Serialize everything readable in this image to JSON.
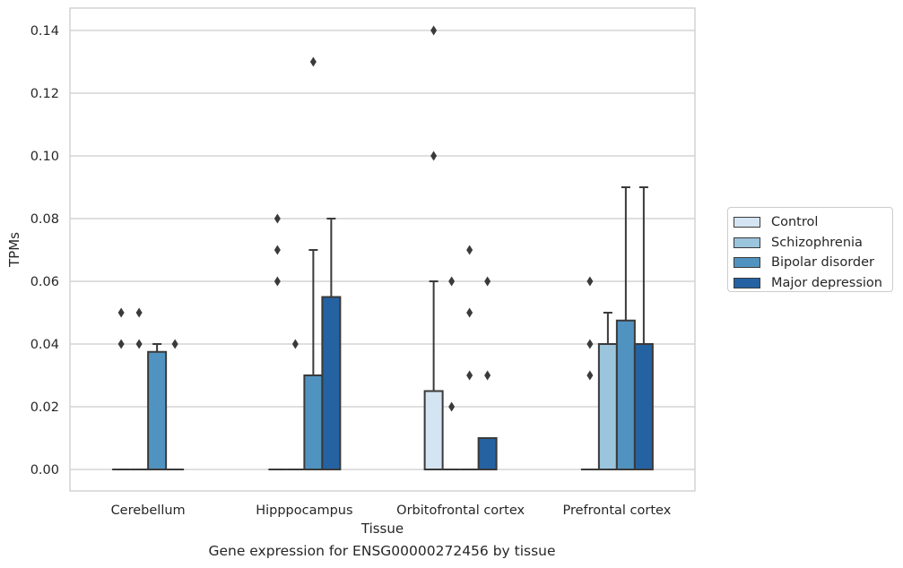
{
  "caption": "Gene expression for ENSG00000272456 by tissue",
  "colors": {
    "Control": "#d4e4f2",
    "Schizophrenia": "#9bc4dd",
    "Bipolar disorder": "#5193c0",
    "Major depression": "#2462a2",
    "edge": "#3a3a3a",
    "grid": "#cccccc"
  },
  "chart_data": {
    "type": "box",
    "title": "",
    "xlabel": "Tissue",
    "ylabel": "TPMs",
    "ylim": [
      -0.007,
      0.147
    ],
    "yticks": [
      "0.00",
      "0.02",
      "0.04",
      "0.06",
      "0.08",
      "0.10",
      "0.12",
      "0.14"
    ],
    "categories": [
      "Cerebellum",
      "Hipppocampus",
      "Orbitofrontal cortex",
      "Prefrontal cortex"
    ],
    "grid": true,
    "legend_position": "right",
    "series": [
      {
        "name": "Control",
        "boxes": [
          {
            "q1": 0,
            "median": 0,
            "q3": 0,
            "whisker_low": 0,
            "whisker_high": 0,
            "outliers": [
              0.04,
              0.05
            ]
          },
          {
            "q1": 0,
            "median": 0,
            "q3": 0,
            "whisker_low": 0,
            "whisker_high": 0,
            "outliers": [
              0.06,
              0.07,
              0.08
            ]
          },
          {
            "q1": 0,
            "median": 0,
            "q3": 0.025,
            "whisker_low": 0,
            "whisker_high": 0.06,
            "outliers": [
              0.1,
              0.14
            ]
          },
          {
            "q1": 0,
            "median": 0,
            "q3": 0,
            "whisker_low": 0,
            "whisker_high": 0,
            "outliers": [
              0.03,
              0.04,
              0.06
            ]
          }
        ]
      },
      {
        "name": "Schizophrenia",
        "boxes": [
          {
            "q1": 0,
            "median": 0,
            "q3": 0,
            "whisker_low": 0,
            "whisker_high": 0,
            "outliers": [
              0.04,
              0.05
            ]
          },
          {
            "q1": 0,
            "median": 0,
            "q3": 0,
            "whisker_low": 0,
            "whisker_high": 0,
            "outliers": [
              0.04
            ]
          },
          {
            "q1": 0,
            "median": 0,
            "q3": 0,
            "whisker_low": 0,
            "whisker_high": 0,
            "outliers": [
              0.02,
              0.06
            ]
          },
          {
            "q1": 0,
            "median": 0,
            "q3": 0.04,
            "whisker_low": 0,
            "whisker_high": 0.05,
            "outliers": []
          }
        ]
      },
      {
        "name": "Bipolar disorder",
        "boxes": [
          {
            "q1": 0,
            "median": 0,
            "q3": 0.0375,
            "whisker_low": 0,
            "whisker_high": 0.04,
            "outliers": []
          },
          {
            "q1": 0,
            "median": 0,
            "q3": 0.03,
            "whisker_low": 0,
            "whisker_high": 0.07,
            "outliers": [
              0.13
            ]
          },
          {
            "q1": 0,
            "median": 0,
            "q3": 0,
            "whisker_low": 0,
            "whisker_high": 0,
            "outliers": [
              0.03,
              0.05,
              0.07
            ]
          },
          {
            "q1": 0,
            "median": 0,
            "q3": 0.0475,
            "whisker_low": 0,
            "whisker_high": 0.09,
            "outliers": []
          }
        ]
      },
      {
        "name": "Major depression",
        "boxes": [
          {
            "q1": 0,
            "median": 0,
            "q3": 0,
            "whisker_low": 0,
            "whisker_high": 0,
            "outliers": [
              0.04
            ]
          },
          {
            "q1": 0,
            "median": 0,
            "q3": 0.055,
            "whisker_low": 0,
            "whisker_high": 0.08,
            "outliers": []
          },
          {
            "q1": 0,
            "median": 0,
            "q3": 0.01,
            "whisker_low": 0,
            "whisker_high": 0.01,
            "outliers": [
              0.03,
              0.06
            ]
          },
          {
            "q1": 0,
            "median": 0,
            "q3": 0.04,
            "whisker_low": 0,
            "whisker_high": 0.09,
            "outliers": []
          }
        ]
      }
    ]
  }
}
